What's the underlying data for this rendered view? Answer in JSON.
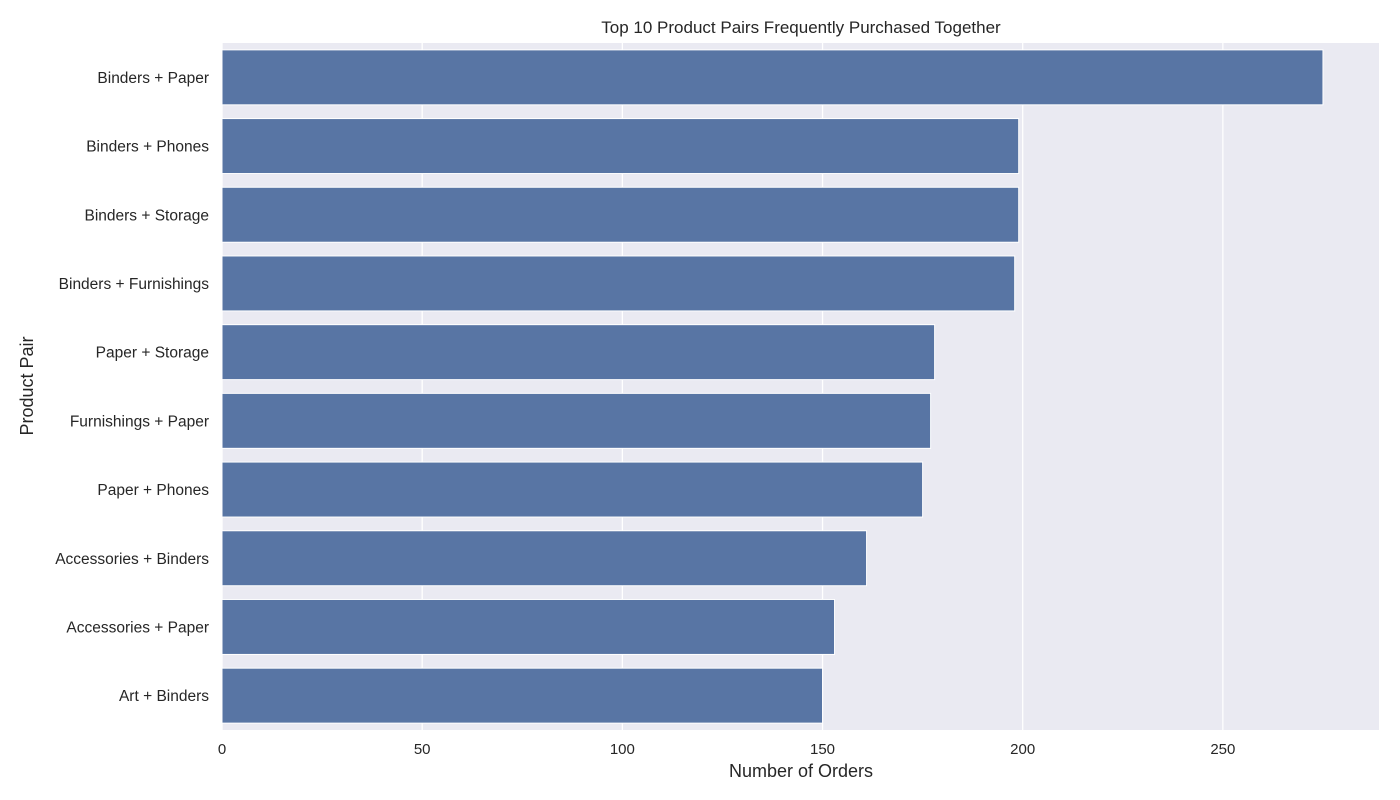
{
  "chart_data": {
    "type": "bar",
    "orientation": "horizontal",
    "title": "Top 10 Product Pairs Frequently Purchased Together",
    "xlabel": "Number of Orders",
    "ylabel": "Product Pair",
    "categories": [
      "Binders + Paper",
      "Binders + Phones",
      "Binders + Storage",
      "Binders + Furnishings",
      "Paper + Storage",
      "Furnishings + Paper",
      "Paper + Phones",
      "Accessories + Binders",
      "Accessories + Paper",
      "Art + Binders"
    ],
    "values": [
      275,
      199,
      199,
      198,
      178,
      177,
      175,
      161,
      153,
      150
    ],
    "xlim": [
      0,
      289
    ],
    "xticks": [
      0,
      50,
      100,
      150,
      200,
      250
    ],
    "grid": true,
    "colors": {
      "bar": "#5875a4",
      "plot_background": "#eaeaf2",
      "grid": "#ffffff"
    }
  }
}
